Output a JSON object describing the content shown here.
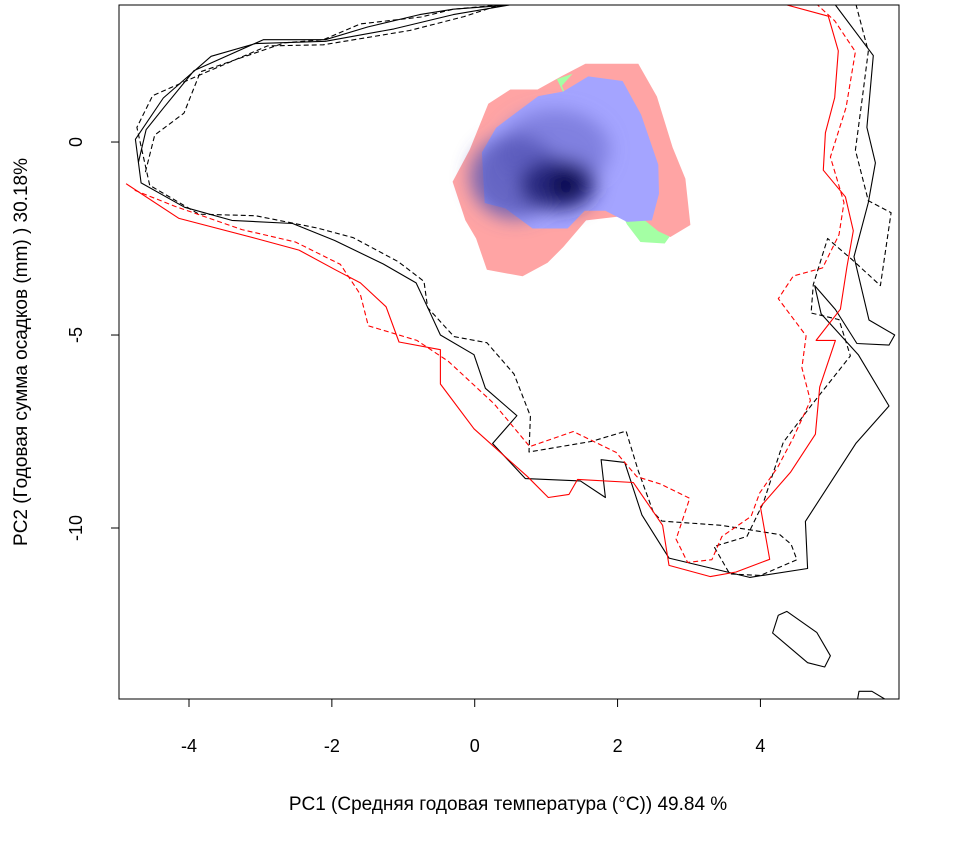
{
  "chart_data": {
    "type": "heatmap",
    "title": "",
    "xlabel": "PC1 (Средняя годовая температура (°C)) 49.84 %",
    "ylabel": "PC2 (Годовая сумма осадков  (mm) ) 30.18%",
    "xlim": [
      -4.98,
      5.94
    ],
    "ylim": [
      -14.43,
      3.55
    ],
    "x_ticks": [
      -4,
      -2,
      0,
      2,
      4
    ],
    "x_tick_labels": [
      "-4",
      "-2",
      "0",
      "2",
      "4"
    ],
    "y_ticks": [
      0,
      -5,
      -10
    ],
    "y_tick_labels": [
      "0",
      "-5",
      "-10"
    ],
    "grid": false,
    "colors": {
      "stable": "#a4a4ff",
      "stable_dense": "#000055",
      "unfilling": "#ffa4a4",
      "expansion": "#a4ffa4",
      "native_envelope": "#000000",
      "invaded_envelope": "#ff0000"
    },
    "regions": {
      "unfilling": [
        [
          -0.07,
          -0.2
        ],
        [
          0.19,
          0.99
        ],
        [
          0.5,
          1.36
        ],
        [
          0.88,
          1.36
        ],
        [
          1.22,
          1.71
        ],
        [
          1.55,
          2.03
        ],
        [
          2.29,
          2.03
        ],
        [
          2.55,
          1.18
        ],
        [
          2.77,
          -0.14
        ],
        [
          2.95,
          -0.95
        ],
        [
          3.02,
          -2.15
        ],
        [
          2.74,
          -2.46
        ],
        [
          2.41,
          -2.21
        ],
        [
          2.16,
          -1.9
        ],
        [
          1.56,
          -2.03
        ],
        [
          1.24,
          -2.72
        ],
        [
          1.02,
          -3.13
        ],
        [
          0.67,
          -3.48
        ],
        [
          0.17,
          -3.31
        ],
        [
          0.02,
          -2.5
        ],
        [
          -0.13,
          -2.03
        ],
        [
          -0.31,
          -1.03
        ]
      ],
      "stable": [
        [
          0.1,
          -0.27
        ],
        [
          0.3,
          0.37
        ],
        [
          0.89,
          1.19
        ],
        [
          1.24,
          1.31
        ],
        [
          1.59,
          1.7
        ],
        [
          2.07,
          1.58
        ],
        [
          2.33,
          0.71
        ],
        [
          2.57,
          -0.59
        ],
        [
          2.58,
          -1.34
        ],
        [
          2.48,
          -2.03
        ],
        [
          2.13,
          -2.07
        ],
        [
          1.83,
          -1.78
        ],
        [
          1.54,
          -1.78
        ],
        [
          1.3,
          -2.24
        ],
        [
          0.81,
          -2.24
        ],
        [
          0.43,
          -1.72
        ],
        [
          0.14,
          -1.58
        ]
      ],
      "stable_core": [
        0.97,
        -1.1
      ],
      "expansion": [
        [
          1.15,
          1.63
        ],
        [
          1.37,
          1.77
        ],
        [
          1.22,
          1.46
        ],
        [
          1.88,
          -1.43
        ],
        [
          2.26,
          -1.85
        ],
        [
          2.57,
          -2.31
        ],
        [
          2.73,
          -2.45
        ],
        [
          2.66,
          -2.63
        ],
        [
          2.32,
          -2.59
        ],
        [
          2.13,
          -2.13
        ]
      ]
    },
    "envelopes": [
      {
        "kind": "native",
        "style": "solid",
        "points": [
          [
            -4.71,
            -0.54
          ],
          [
            -4.6,
            0.32
          ],
          [
            -4.35,
            0.9
          ],
          [
            -3.93,
            1.85
          ],
          [
            -2.96,
            2.65
          ],
          [
            -2.09,
            2.65
          ],
          [
            -1.5,
            2.98
          ],
          [
            -0.77,
            3.3
          ],
          [
            -0.3,
            3.44
          ],
          [
            0.49,
            3.55
          ],
          [
            -0.3,
            3.3
          ],
          [
            -1.13,
            2.93
          ],
          [
            -2.09,
            2.61
          ],
          [
            -3.07,
            2.55
          ],
          [
            -3.69,
            2.22
          ],
          [
            -4.36,
            1.14
          ],
          [
            -4.75,
            0.07
          ],
          [
            -4.67,
            -1.06
          ],
          [
            -4.06,
            -1.69
          ],
          [
            -3.4,
            -2.03
          ],
          [
            -2.55,
            -2.11
          ],
          [
            -1.96,
            -2.55
          ],
          [
            -1.28,
            -3.16
          ],
          [
            -0.82,
            -3.65
          ],
          [
            -0.65,
            -4.32
          ],
          [
            -0.48,
            -5.0
          ],
          [
            -0.01,
            -5.51
          ],
          [
            0.15,
            -6.38
          ],
          [
            0.59,
            -7.09
          ],
          [
            0.25,
            -7.81
          ],
          [
            0.71,
            -8.72
          ],
          [
            1.48,
            -8.78
          ],
          [
            1.83,
            -9.21
          ],
          [
            1.77,
            -8.23
          ],
          [
            2.1,
            -8.3
          ],
          [
            2.34,
            -9.66
          ],
          [
            2.72,
            -10.78
          ],
          [
            3.85,
            -11.28
          ],
          [
            4.66,
            -11.05
          ],
          [
            4.63,
            -9.83
          ],
          [
            5.34,
            -7.8
          ],
          [
            5.8,
            -6.84
          ],
          [
            5.37,
            -5.51
          ],
          [
            4.85,
            -4.45
          ],
          [
            4.76,
            -3.72
          ],
          [
            5.05,
            -4.34
          ],
          [
            5.35,
            -5.22
          ],
          [
            5.8,
            -5.26
          ],
          [
            5.88,
            -5.0
          ],
          [
            5.52,
            -4.61
          ],
          [
            5.31,
            -2.97
          ],
          [
            5.51,
            -1.57
          ],
          [
            5.61,
            -0.54
          ],
          [
            5.49,
            0.38
          ],
          [
            5.58,
            2.24
          ],
          [
            5.05,
            3.55
          ]
        ]
      },
      {
        "kind": "native",
        "style": "dashed",
        "points": [
          [
            -4.61,
            -0.78
          ],
          [
            -4.48,
            0.18
          ],
          [
            -4.07,
            0.75
          ],
          [
            -3.84,
            1.82
          ],
          [
            -2.66,
            2.57
          ],
          [
            -2.12,
            2.65
          ],
          [
            -1.6,
            3.06
          ],
          [
            -0.75,
            3.24
          ],
          [
            -0.3,
            3.44
          ],
          [
            0.35,
            3.55
          ],
          [
            -0.15,
            3.25
          ],
          [
            -0.91,
            2.89
          ],
          [
            -2.12,
            2.52
          ],
          [
            -2.9,
            2.49
          ],
          [
            -3.87,
            1.72
          ],
          [
            -4.51,
            1.2
          ],
          [
            -4.73,
            0.38
          ],
          [
            -4.55,
            -1.12
          ],
          [
            -3.86,
            -1.87
          ],
          [
            -3.07,
            -1.91
          ],
          [
            -2.2,
            -2.23
          ],
          [
            -1.7,
            -2.48
          ],
          [
            -1.07,
            -3.1
          ],
          [
            -0.71,
            -3.61
          ],
          [
            -0.66,
            -4.29
          ],
          [
            -0.29,
            -5.04
          ],
          [
            0.17,
            -5.2
          ],
          [
            0.55,
            -6.01
          ],
          [
            0.78,
            -7.1
          ],
          [
            0.76,
            -8.03
          ],
          [
            1.63,
            -7.76
          ],
          [
            2.12,
            -7.49
          ],
          [
            2.29,
            -8.52
          ],
          [
            2.5,
            -9.59
          ],
          [
            2.62,
            -9.82
          ],
          [
            3.45,
            -9.93
          ],
          [
            4.27,
            -10.17
          ],
          [
            4.43,
            -10.42
          ],
          [
            4.51,
            -10.82
          ],
          [
            4.0,
            -11.23
          ],
          [
            3.57,
            -11.19
          ],
          [
            3.35,
            -10.48
          ],
          [
            3.81,
            -10.22
          ],
          [
            4.04,
            -9.35
          ],
          [
            4.32,
            -7.78
          ],
          [
            4.73,
            -6.78
          ],
          [
            5.26,
            -5.54
          ],
          [
            5.1,
            -4.6
          ],
          [
            4.71,
            -4.43
          ],
          [
            4.74,
            -3.69
          ],
          [
            4.94,
            -2.5
          ],
          [
            5.29,
            -3.06
          ],
          [
            5.68,
            -3.72
          ],
          [
            5.83,
            -1.83
          ],
          [
            5.51,
            -1.52
          ],
          [
            5.33,
            -0.21
          ],
          [
            5.43,
            1.2
          ],
          [
            5.51,
            2.35
          ],
          [
            5.34,
            3.55
          ]
        ]
      },
      {
        "kind": "invaded",
        "style": "solid",
        "points": [
          [
            -4.88,
            -1.08
          ],
          [
            -4.14,
            -1.98
          ],
          [
            -3.06,
            -2.5
          ],
          [
            -2.46,
            -2.8
          ],
          [
            -1.94,
            -3.32
          ],
          [
            -1.6,
            -3.65
          ],
          [
            -1.24,
            -4.27
          ],
          [
            -1.06,
            -5.18
          ],
          [
            -0.48,
            -5.38
          ],
          [
            -0.48,
            -6.27
          ],
          [
            -0.01,
            -7.43
          ],
          [
            0.74,
            -8.67
          ],
          [
            1.03,
            -9.21
          ],
          [
            1.32,
            -9.13
          ],
          [
            1.44,
            -8.74
          ],
          [
            2.22,
            -8.82
          ],
          [
            2.63,
            -9.93
          ],
          [
            2.72,
            -10.97
          ],
          [
            3.3,
            -11.26
          ],
          [
            3.66,
            -11.14
          ],
          [
            4.13,
            -10.81
          ],
          [
            4.0,
            -9.45
          ],
          [
            4.42,
            -8.56
          ],
          [
            4.77,
            -7.57
          ],
          [
            4.83,
            -6.35
          ],
          [
            5.05,
            -5.14
          ],
          [
            4.78,
            -5.14
          ],
          [
            5.12,
            -4.33
          ],
          [
            5.21,
            -3.24
          ],
          [
            5.3,
            -2.3
          ],
          [
            5.19,
            -1.42
          ],
          [
            4.88,
            -0.73
          ],
          [
            4.91,
            0.24
          ],
          [
            5.04,
            1.15
          ],
          [
            5.09,
            2.36
          ],
          [
            4.95,
            3.26
          ],
          [
            4.37,
            3.55
          ]
        ]
      },
      {
        "kind": "invaded",
        "style": "dashed",
        "points": [
          [
            -4.76,
            -1.25
          ],
          [
            -4.19,
            -1.67
          ],
          [
            -3.26,
            -2.27
          ],
          [
            -2.51,
            -2.59
          ],
          [
            -1.88,
            -3.17
          ],
          [
            -1.6,
            -3.95
          ],
          [
            -1.49,
            -4.76
          ],
          [
            -0.81,
            -5.14
          ],
          [
            -0.37,
            -5.68
          ],
          [
            0.27,
            -6.78
          ],
          [
            0.77,
            -7.89
          ],
          [
            1.38,
            -7.5
          ],
          [
            1.98,
            -8.04
          ],
          [
            2.27,
            -8.67
          ],
          [
            2.6,
            -8.86
          ],
          [
            3.01,
            -9.23
          ],
          [
            2.82,
            -10.29
          ],
          [
            2.98,
            -10.89
          ],
          [
            3.32,
            -10.82
          ],
          [
            3.46,
            -10.22
          ],
          [
            3.87,
            -9.7
          ],
          [
            3.99,
            -9.09
          ],
          [
            4.24,
            -8.43
          ],
          [
            4.46,
            -7.66
          ],
          [
            4.7,
            -6.7
          ],
          [
            4.58,
            -5.85
          ],
          [
            4.64,
            -5.02
          ],
          [
            4.25,
            -4.06
          ],
          [
            4.46,
            -3.47
          ],
          [
            4.87,
            -3.26
          ],
          [
            5.1,
            -2.4
          ],
          [
            5.17,
            -1.57
          ],
          [
            4.98,
            -0.39
          ],
          [
            5.2,
            0.9
          ],
          [
            5.33,
            2.34
          ],
          [
            5.04,
            3.14
          ],
          [
            4.8,
            3.55
          ]
        ]
      },
      {
        "kind": "native",
        "style": "solid",
        "points": [
          [
            4.25,
            -12.26
          ],
          [
            4.37,
            -12.16
          ],
          [
            4.79,
            -12.71
          ],
          [
            4.98,
            -13.31
          ],
          [
            4.9,
            -13.6
          ],
          [
            4.66,
            -13.49
          ],
          [
            4.17,
            -12.72
          ],
          [
            4.25,
            -12.26
          ]
        ]
      },
      {
        "kind": "native",
        "style": "solid",
        "points": [
          [
            5.36,
            -14.43
          ],
          [
            5.38,
            -14.23
          ],
          [
            5.56,
            -14.23
          ],
          [
            5.74,
            -14.43
          ]
        ]
      }
    ]
  }
}
